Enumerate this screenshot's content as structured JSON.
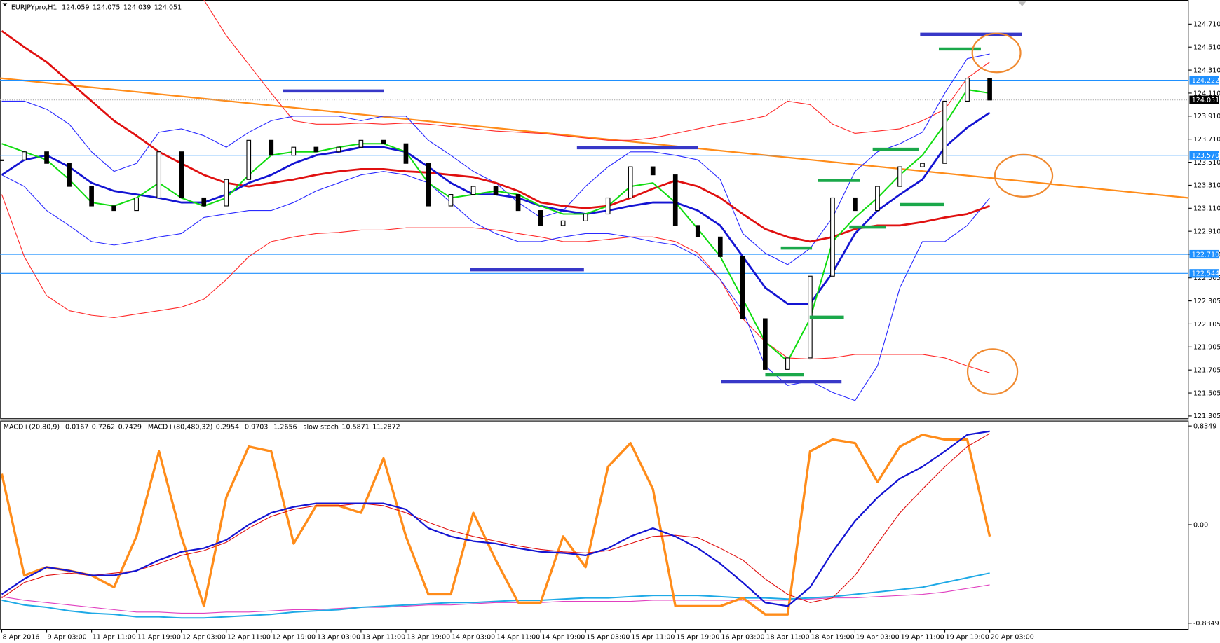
{
  "chart_data": {
    "type": "candlestick",
    "title": "EURJPYpro,H1",
    "ohlc": [
      124.059,
      124.075,
      124.039,
      124.051
    ],
    "categories": [
      "8 Apr 2016",
      null,
      "9 Apr 03:00",
      null,
      "11 Apr 11:00",
      null,
      "11 Apr 19:00",
      null,
      "12 Apr 03:00",
      null,
      "12 Apr 11:00",
      null,
      "12 Apr 19:00",
      null,
      "13 Apr 03:00",
      null,
      "13 Apr 11:00",
      null,
      "13 Apr 19:00",
      null,
      "14 Apr 03:00",
      null,
      "14 Apr 11:00",
      null,
      "14 Apr 19:00",
      null,
      "15 Apr 03:00",
      null,
      "15 Apr 11:00",
      null,
      "15 Apr 19:00",
      null,
      "16 Apr 03:00",
      null,
      "18 Apr 11:00",
      null,
      "18 Apr 19:00",
      null,
      "19 Apr 03:00",
      null,
      "19 Apr 11:00",
      null,
      "19 Apr 19:00",
      null,
      "20 Apr 03:00"
    ],
    "values": [
      123.53,
      123.6,
      123.5,
      123.3,
      123.13,
      123.09,
      123.2,
      123.6,
      123.2,
      123.13,
      123.36,
      123.7,
      123.57,
      123.64,
      123.6,
      123.64,
      123.7,
      123.67,
      123.5,
      123.13,
      123.23,
      123.3,
      123.23,
      123.09,
      122.96,
      123.0,
      123.06,
      123.2,
      123.47,
      123.4,
      122.96,
      122.86,
      122.69,
      122.15,
      121.71,
      121.81,
      122.52,
      123.2,
      123.09,
      123.3,
      123.47,
      123.5,
      124.04,
      124.24,
      124.05
    ],
    "series": [
      {
        "color": "#ff2a2a",
        "width": 1,
        "values": [
          123.23,
          122.69,
          122.35,
          122.22,
          122.18,
          122.16,
          122.19,
          122.22,
          122.25,
          122.32,
          122.49,
          122.69,
          122.82,
          122.86,
          122.89,
          122.9,
          122.92,
          122.92,
          122.94,
          122.94,
          122.94,
          122.94,
          122.92,
          122.89,
          122.86,
          122.82,
          122.82,
          122.84,
          122.86,
          122.86,
          122.82,
          122.72,
          122.49,
          122.15,
          121.95,
          121.81,
          121.8,
          121.81,
          121.84,
          121.84,
          121.84,
          121.84,
          121.81,
          121.74,
          121.68
        ]
      },
      {
        "color": "#ff2a2a",
        "width": 1,
        "values": [
          null,
          null,
          null,
          null,
          null,
          null,
          null,
          null,
          null,
          124.92,
          124.61,
          124.36,
          124.11,
          123.87,
          123.84,
          123.84,
          123.85,
          123.84,
          123.85,
          123.84,
          123.82,
          123.8,
          123.78,
          123.77,
          123.76,
          123.74,
          123.72,
          123.7,
          123.7,
          123.72,
          123.76,
          123.8,
          123.84,
          123.87,
          123.91,
          124.04,
          124.01,
          123.84,
          123.76,
          123.78,
          123.8,
          123.87,
          123.97,
          124.24,
          124.38
        ]
      },
      {
        "color": "#2a2aff",
        "width": 1,
        "values": [
          124.04,
          124.04,
          123.97,
          123.84,
          123.6,
          123.43,
          123.5,
          123.77,
          123.8,
          123.74,
          123.64,
          123.77,
          123.87,
          123.91,
          123.91,
          123.91,
          123.87,
          123.91,
          123.91,
          123.7,
          123.57,
          123.43,
          123.33,
          123.16,
          123.03,
          123.09,
          123.3,
          123.47,
          123.6,
          123.6,
          123.57,
          123.53,
          123.36,
          122.89,
          122.72,
          122.62,
          122.76,
          123.03,
          123.43,
          123.6,
          123.67,
          123.77,
          124.11,
          124.41,
          124.45
        ]
      },
      {
        "color": "#2a2aff",
        "width": 1,
        "values": [
          123.4,
          123.3,
          123.09,
          122.96,
          122.82,
          122.79,
          122.82,
          122.86,
          122.89,
          123.03,
          123.06,
          123.09,
          123.09,
          123.16,
          123.26,
          123.33,
          123.4,
          123.43,
          123.4,
          123.33,
          123.16,
          122.99,
          122.89,
          122.82,
          122.82,
          122.86,
          122.89,
          122.89,
          122.86,
          122.82,
          122.79,
          122.69,
          122.49,
          122.22,
          121.74,
          121.57,
          121.61,
          121.51,
          121.44,
          121.74,
          122.42,
          122.82,
          122.82,
          122.96,
          123.2
        ]
      },
      {
        "color": "#e01010",
        "width": 2.5,
        "values": [
          124.65,
          124.51,
          124.38,
          124.21,
          124.04,
          123.87,
          123.74,
          123.6,
          123.5,
          123.4,
          123.33,
          123.3,
          123.33,
          123.36,
          123.4,
          123.43,
          123.45,
          123.45,
          123.43,
          123.42,
          123.4,
          123.38,
          123.33,
          123.26,
          123.16,
          123.13,
          123.11,
          123.13,
          123.2,
          123.28,
          123.35,
          123.3,
          123.2,
          123.06,
          122.93,
          122.86,
          122.82,
          122.86,
          122.93,
          122.96,
          122.96,
          122.99,
          123.03,
          123.06,
          123.13
        ]
      },
      {
        "color": "#1414d2",
        "width": 2.5,
        "values": [
          123.4,
          123.53,
          123.57,
          123.47,
          123.33,
          123.26,
          123.23,
          123.2,
          123.16,
          123.16,
          123.23,
          123.33,
          123.4,
          123.5,
          123.57,
          123.6,
          123.64,
          123.64,
          123.6,
          123.47,
          123.33,
          123.23,
          123.23,
          123.2,
          123.13,
          123.09,
          123.06,
          123.09,
          123.13,
          123.16,
          123.16,
          123.09,
          122.96,
          122.69,
          122.42,
          122.28,
          122.28,
          122.55,
          122.89,
          123.09,
          123.23,
          123.36,
          123.64,
          123.81,
          123.94
        ]
      },
      {
        "color": "#10dc10",
        "width": 1.8,
        "values": [
          123.67,
          123.6,
          123.53,
          123.36,
          123.16,
          123.13,
          123.2,
          123.33,
          123.2,
          123.13,
          123.2,
          123.4,
          123.57,
          123.6,
          123.6,
          123.64,
          123.67,
          123.67,
          123.6,
          123.33,
          123.2,
          123.23,
          123.26,
          123.23,
          123.13,
          123.06,
          123.06,
          123.13,
          123.3,
          123.33,
          123.16,
          122.93,
          122.69,
          122.32,
          121.95,
          121.78,
          122.15,
          122.82,
          123.03,
          123.2,
          123.4,
          123.57,
          123.84,
          124.14,
          124.11
        ]
      }
    ],
    "trendline": {
      "color": "#ff8c1a",
      "from": 124.24,
      "to": 123.2
    },
    "levels": [
      124.222,
      {
        "value": 123.57,
        "label": "123.570"
      },
      {
        "value": 122.71,
        "label": "122.710"
      },
      122.544
    ],
    "level_color": "#1e90ff",
    "price": 124.051,
    "ylim": [
      121.285,
      124.919
    ],
    "yticks": [
      {
        "value": 124.71,
        "label": "124.710"
      },
      {
        "value": 124.51,
        "label": "124.510"
      },
      {
        "value": 124.31,
        "label": "124.310"
      },
      {
        "value": 124.11,
        "label": "124.110"
      },
      {
        "value": 123.91,
        "label": "123.910"
      },
      {
        "value": 123.71,
        "label": "123.710"
      },
      {
        "value": 123.51,
        "label": "123.510"
      },
      {
        "value": 123.31,
        "label": "123.310"
      },
      {
        "value": 123.11,
        "label": "123.110"
      },
      {
        "value": 122.91,
        "label": "122.910"
      },
      {
        "value": 122.71,
        "label": "122.710"
      },
      122.505,
      122.305,
      122.105,
      121.905,
      121.705,
      121.505,
      121.305
    ],
    "sub": {
      "indicators": [
        {
          "name": "MACD+(20,80,9)",
          "values": [
            -0.0167,
            0.7262,
            0.7429
          ]
        },
        {
          "name": "MACD+(80,480,32)",
          "values": [
            0.2954,
            -0.9703,
            -1.2656
          ]
        },
        {
          "name": "slow-stoch",
          "values": [
            10.5871,
            11.2872
          ]
        }
      ],
      "ylim": [
        -0.89,
        0.88
      ],
      "yticks": [
        0.8349,
        {
          "value": 0,
          "label": "0.00"
        },
        -0.8349
      ],
      "series": [
        {
          "color": "#e040c0",
          "width": 1,
          "values": [
            -0.61,
            -0.64,
            -0.66,
            -0.68,
            -0.7,
            -0.72,
            -0.74,
            -0.74,
            -0.75,
            -0.75,
            -0.74,
            -0.74,
            -0.73,
            -0.72,
            -0.72,
            -0.71,
            -0.7,
            -0.7,
            -0.69,
            -0.68,
            -0.68,
            -0.67,
            -0.66,
            -0.66,
            -0.66,
            -0.65,
            -0.65,
            -0.65,
            -0.65,
            -0.64,
            -0.64,
            -0.64,
            -0.64,
            -0.64,
            -0.64,
            -0.64,
            -0.63,
            -0.62,
            -0.62,
            -0.61,
            -0.6,
            -0.59,
            -0.57,
            -0.54,
            -0.51
          ]
        },
        {
          "color": "#1ea9e6",
          "width": 1.8,
          "values": [
            -0.64,
            -0.68,
            -0.7,
            -0.73,
            -0.75,
            -0.76,
            -0.78,
            -0.78,
            -0.79,
            -0.79,
            -0.78,
            -0.77,
            -0.76,
            -0.74,
            -0.73,
            -0.72,
            -0.7,
            -0.69,
            -0.68,
            -0.67,
            -0.66,
            -0.66,
            -0.65,
            -0.64,
            -0.64,
            -0.63,
            -0.62,
            -0.62,
            -0.61,
            -0.6,
            -0.6,
            -0.6,
            -0.61,
            -0.62,
            -0.62,
            -0.63,
            -0.62,
            -0.61,
            -0.59,
            -0.57,
            -0.55,
            -0.53,
            -0.49,
            -0.45,
            -0.41
          ]
        },
        {
          "color": "#ff8c1a",
          "width": 3,
          "values": [
            0.43,
            -0.43,
            -0.36,
            -0.39,
            -0.43,
            -0.53,
            -0.1,
            0.62,
            -0.1,
            -0.69,
            0.23,
            0.66,
            0.62,
            -0.16,
            0.16,
            0.16,
            0.1,
            0.56,
            -0.1,
            -0.59,
            -0.59,
            0.1,
            -0.3,
            -0.66,
            -0.66,
            -0.1,
            -0.36,
            0.49,
            0.69,
            0.3,
            -0.69,
            -0.69,
            -0.69,
            -0.62,
            -0.76,
            -0.76,
            0.62,
            0.72,
            0.69,
            0.36,
            0.66,
            0.76,
            0.72,
            0.72,
            -0.1
          ]
        },
        {
          "color": "#e01010",
          "width": 1,
          "values": [
            -0.62,
            -0.49,
            -0.43,
            -0.41,
            -0.43,
            -0.41,
            -0.39,
            -0.33,
            -0.26,
            -0.22,
            -0.15,
            -0.03,
            0.07,
            0.13,
            0.16,
            0.16,
            0.18,
            0.16,
            0.1,
            0.02,
            -0.05,
            -0.1,
            -0.14,
            -0.18,
            -0.21,
            -0.23,
            -0.24,
            -0.22,
            -0.16,
            -0.1,
            -0.09,
            -0.11,
            -0.2,
            -0.3,
            -0.46,
            -0.59,
            -0.66,
            -0.62,
            -0.43,
            -0.16,
            0.1,
            0.3,
            0.49,
            0.66,
            0.77
          ]
        },
        {
          "color": "#1414d2",
          "width": 2,
          "values": [
            -0.59,
            -0.46,
            -0.36,
            -0.39,
            -0.43,
            -0.43,
            -0.39,
            -0.3,
            -0.23,
            -0.2,
            -0.13,
            0,
            0.1,
            0.15,
            0.18,
            0.18,
            0.18,
            0.18,
            0.13,
            -0.03,
            -0.1,
            -0.14,
            -0.16,
            -0.2,
            -0.23,
            -0.24,
            -0.26,
            -0.2,
            -0.1,
            -0.03,
            -0.1,
            -0.2,
            -0.33,
            -0.49,
            -0.66,
            -0.69,
            -0.53,
            -0.23,
            0.03,
            0.23,
            0.39,
            0.49,
            0.62,
            0.76,
            0.79
          ]
        }
      ]
    }
  }
}
